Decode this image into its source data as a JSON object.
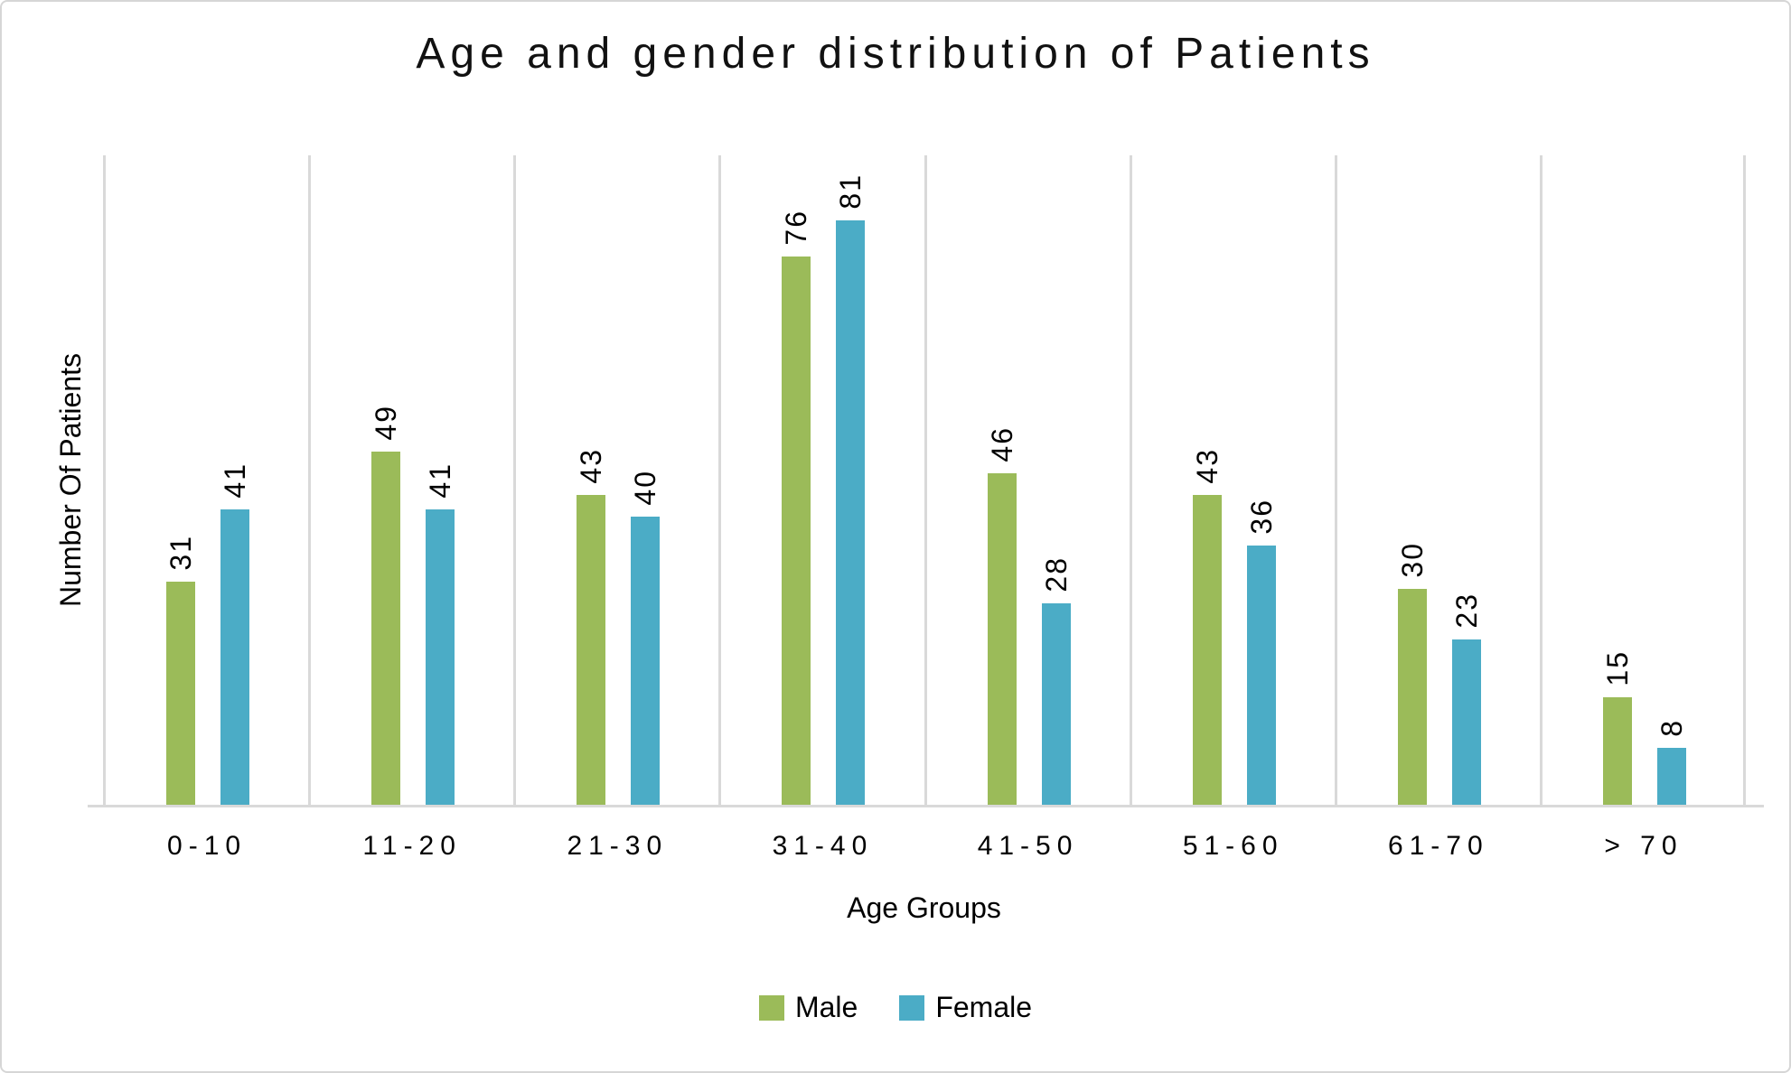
{
  "title": "Age and gender distribution of Patients",
  "chart_data": {
    "type": "bar",
    "categories": [
      "0-10",
      "11-20",
      "21-30",
      "31-40",
      "41-50",
      "51-60",
      "61-70",
      "> 70"
    ],
    "series": [
      {
        "name": "Male",
        "color": "#9BBB59",
        "values": [
          31,
          49,
          43,
          76,
          46,
          43,
          30,
          15
        ]
      },
      {
        "name": "Female",
        "color": "#4BACC6",
        "values": [
          41,
          41,
          40,
          81,
          28,
          36,
          23,
          8
        ]
      }
    ],
    "title": "Age and gender distribution of Patients",
    "xlabel": "Age Groups",
    "ylabel": "Number Of Patients",
    "ylim": [
      0,
      90
    ],
    "grid": "vertical category-separator gridlines only",
    "gridline_color": "#D9D9D9",
    "legend_position": "bottom",
    "data_labels": "values shown above bars, rotated vertical reading bottom-to-top"
  },
  "legend": {
    "items": [
      {
        "label": "Male",
        "color": "#9BBB59"
      },
      {
        "label": "Female",
        "color": "#4BACC6"
      }
    ]
  }
}
